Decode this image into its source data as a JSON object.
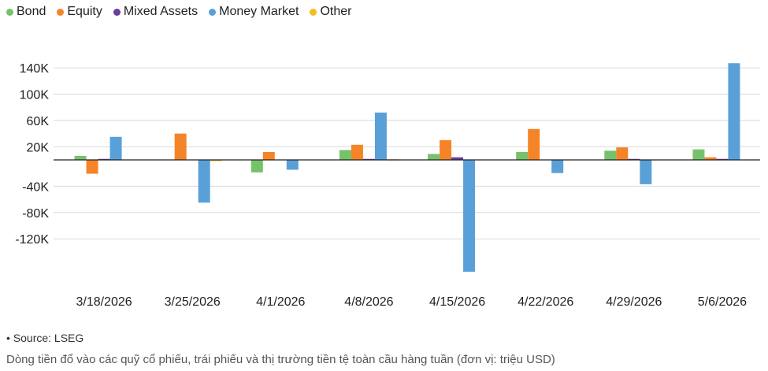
{
  "legend": [
    {
      "name": "Bond",
      "color": "#76c26b"
    },
    {
      "name": "Equity",
      "color": "#f58428"
    },
    {
      "name": "Mixed Assets",
      "color": "#6a3fa0"
    },
    {
      "name": "Money Market",
      "color": "#5aa0d8"
    },
    {
      "name": "Other",
      "color": "#f0c020"
    }
  ],
  "source_text": "• Source: LSEG",
  "caption": "Dòng tiền đổ vào các quỹ cổ phiếu, trái phiếu và thị trường tiền tệ toàn cầu hàng tuần (đơn vị: triệu USD)",
  "chart_data": {
    "type": "bar",
    "categories": [
      "3/18/2026",
      "3/25/2026",
      "4/1/2026",
      "4/8/2026",
      "4/15/2026",
      "4/22/2026",
      "4/29/2026",
      "5/6/2026"
    ],
    "series": [
      {
        "name": "Bond",
        "color": "#76c26b",
        "values": [
          6000,
          0,
          -19000,
          15000,
          9000,
          12000,
          14000,
          16000
        ]
      },
      {
        "name": "Equity",
        "color": "#f58428",
        "values": [
          -21000,
          40000,
          12000,
          23000,
          30000,
          47000,
          19000,
          4000
        ]
      },
      {
        "name": "Mixed Assets",
        "color": "#6a3fa0",
        "values": [
          1500,
          0,
          0,
          1500,
          4000,
          0,
          1500,
          1500
        ]
      },
      {
        "name": "Money Market",
        "color": "#5aa0d8",
        "values": [
          35000,
          -65000,
          -15000,
          72000,
          -170000,
          -20000,
          -37000,
          147000
        ]
      },
      {
        "name": "Other",
        "color": "#f0c020",
        "values": [
          0,
          -1500,
          0,
          1000,
          0,
          0,
          0,
          0
        ]
      }
    ],
    "y_ticks": [
      140000,
      100000,
      60000,
      20000,
      -40000,
      -80000,
      -120000
    ],
    "y_tick_labels": [
      "140K",
      "100K",
      "60K",
      "20K",
      "-40K",
      "-80K",
      "-120K"
    ],
    "ylim": [
      -170000,
      150000
    ],
    "grid": true,
    "legend_position": "top-left"
  }
}
